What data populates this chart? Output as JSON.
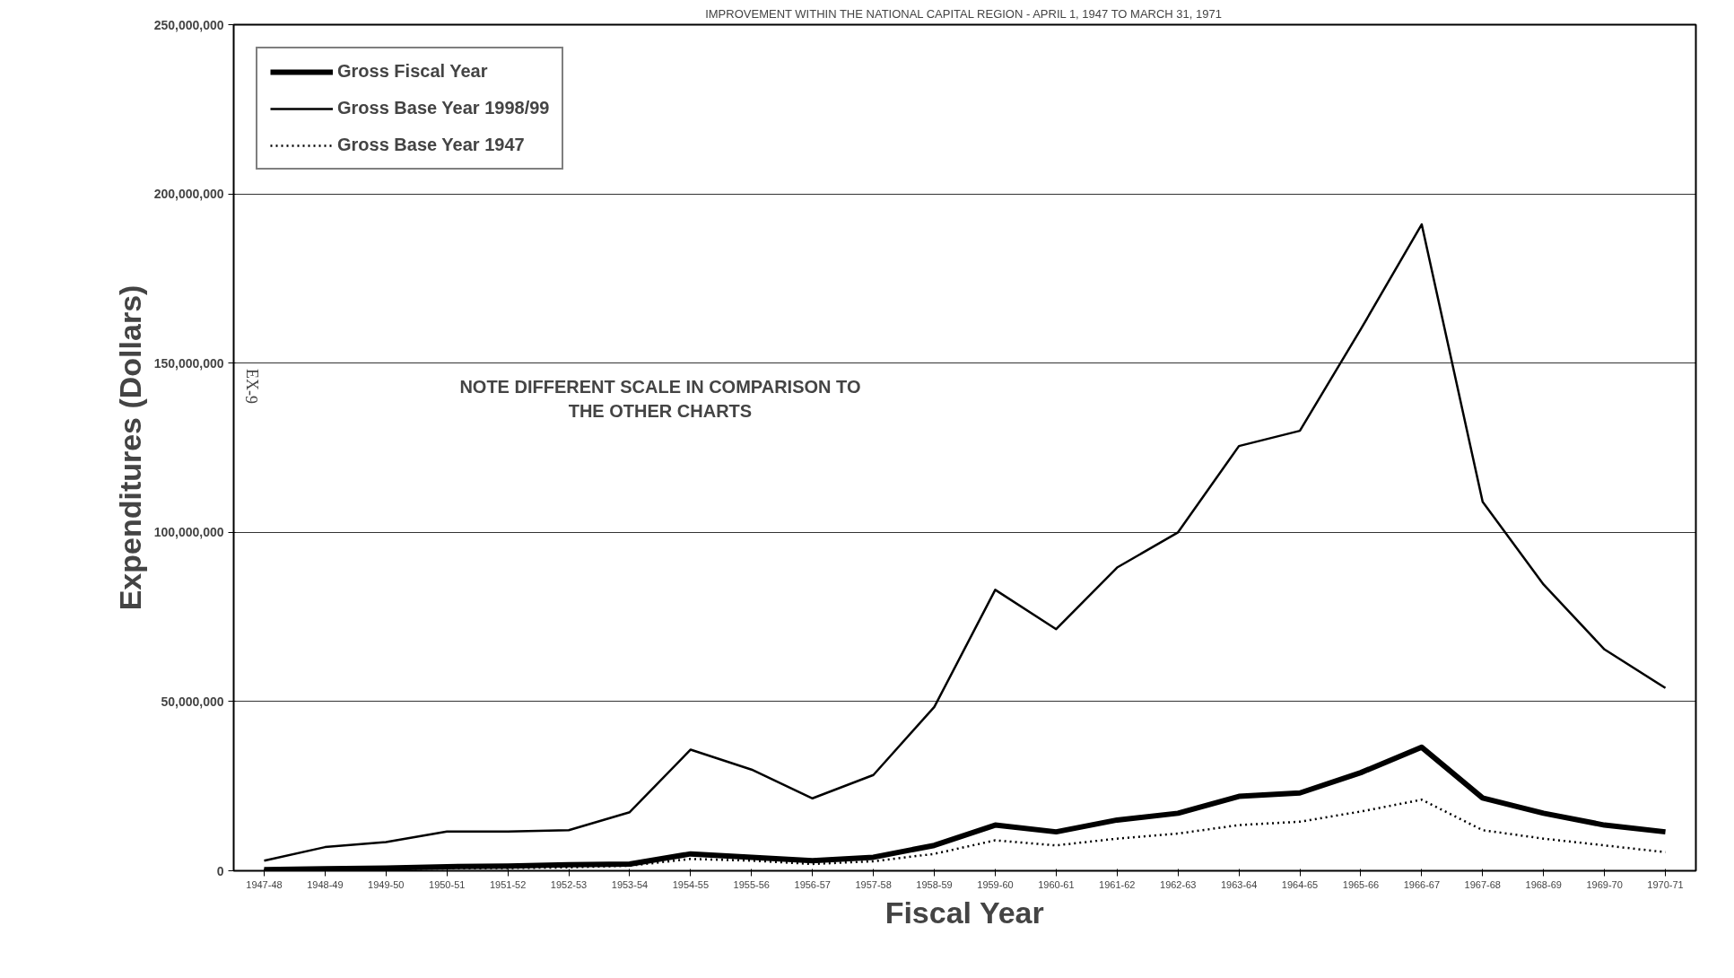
{
  "chart_data": {
    "type": "line",
    "title": "IMPROVEMENT WITHIN THE NATIONAL CAPITAL REGION - APRIL 1, 1947 TO MARCH 31, 1971",
    "xlabel": "Fiscal Year",
    "ylabel": "Expenditures (Dollars)",
    "categories": [
      "1947-48",
      "1948-49",
      "1949-50",
      "1950-51",
      "1951-52",
      "1952-53",
      "1953-54",
      "1954-55",
      "1955-56",
      "1956-57",
      "1957-58",
      "1958-59",
      "1959-60",
      "1960-61",
      "1961-62",
      "1962-63",
      "1963-64",
      "1964-65",
      "1965-66",
      "1966-67",
      "1967-68",
      "1968-69",
      "1969-70",
      "1970-71"
    ],
    "series": [
      {
        "name": "Gross Fiscal Year",
        "color": "#000000",
        "line_style": "solid",
        "values": [
          300000,
          600000,
          800000,
          1200000,
          1400000,
          1800000,
          2000000,
          5000000,
          4000000,
          3000000,
          4000000,
          7500000,
          13500000,
          11500000,
          15000000,
          17000000,
          22000000,
          23000000,
          29000000,
          36500000,
          21500000,
          17000000,
          13500000,
          11500000
        ]
      },
      {
        "name": "Gross Base Year 1998/99",
        "color": "#000000",
        "line_style": "solid",
        "values": [
          3000000,
          7000000,
          8500000,
          11600000,
          11600000,
          12000000,
          17300000,
          35800000,
          29900000,
          21400000,
          28300000,
          48400000,
          83000000,
          71400000,
          89600000,
          100000000,
          125500000,
          130000000,
          160000000,
          191000000,
          109000000,
          84600000,
          65400000,
          54000000
        ]
      },
      {
        "name": "Gross Base Year 1947",
        "color": "#000000",
        "line_style": "dotted",
        "values": [
          200000,
          400000,
          500000,
          700000,
          800000,
          1000000,
          1500000,
          3500000,
          3000000,
          2000000,
          2800000,
          5000000,
          9000000,
          7500000,
          9500000,
          11000000,
          13500000,
          14500000,
          17500000,
          21000000,
          12000000,
          9500000,
          7500000,
          5500000
        ]
      }
    ],
    "ylim": [
      0,
      250000000
    ],
    "yticks": [
      0,
      {
        "value": 50000000,
        "label": "50,000,000"
      },
      {
        "value": 100000000,
        "label": "100,000,000"
      },
      {
        "value": 150000000,
        "label": "150,000,000"
      },
      {
        "value": 200000000,
        "label": "200,000,000"
      },
      {
        "value": 250000000,
        "label": "250,000,000"
      }
    ],
    "grid": "y",
    "legend": "top left",
    "marker": "none",
    "annotations": [
      "NOTE DIFFERENT SCALE IN COMPARISON TO\nTHE OTHER CHARTS",
      "EX-9"
    ]
  }
}
